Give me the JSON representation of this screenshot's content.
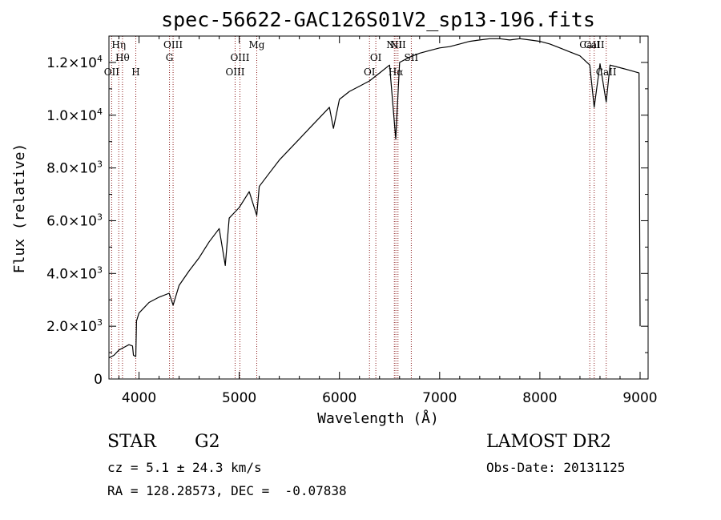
{
  "chart_data": {
    "type": "line",
    "title": "spec-56622-GAC126S01V2_sp13-196.fits",
    "xlabel": "Wavelength (Å)",
    "ylabel": "Flux (relative)",
    "xlim": [
      3700,
      9080
    ],
    "ylim": [
      0,
      13000
    ],
    "x_ticks": [
      4000,
      5000,
      6000,
      7000,
      8000,
      9000
    ],
    "y_ticks": [
      {
        "value": 0,
        "mant": "0",
        "exp": ""
      },
      {
        "value": 2000,
        "mant": "2.0×10",
        "exp": "3"
      },
      {
        "value": 4000,
        "mant": "4.0×10",
        "exp": "3"
      },
      {
        "value": 6000,
        "mant": "6.0×10",
        "exp": "3"
      },
      {
        "value": 8000,
        "mant": "8.0×10",
        "exp": "3"
      },
      {
        "value": 10000,
        "mant": "1.0×10",
        "exp": "4"
      },
      {
        "value": 12000,
        "mant": "1.2×10",
        "exp": "4"
      }
    ],
    "grid": false,
    "series": [
      {
        "line_color": "#000000",
        "x": [
          3700,
          3750,
          3800,
          3850,
          3900,
          3935,
          3945,
          3968,
          3975,
          4000,
          4100,
          4200,
          4300,
          4340,
          4400,
          4500,
          4600,
          4700,
          4800,
          4861,
          4900,
          5000,
          5100,
          5175,
          5200,
          5300,
          5400,
          5500,
          5600,
          5700,
          5800,
          5900,
          5940,
          6000,
          6100,
          6200,
          6300,
          6400,
          6500,
          6562,
          6600,
          6700,
          6800,
          6900,
          7000,
          7100,
          7200,
          7300,
          7400,
          7500,
          7600,
          7700,
          7800,
          7900,
          8000,
          8100,
          8200,
          8300,
          8400,
          8498,
          8542,
          8600,
          8662,
          8700,
          8800,
          8900,
          8990,
          9000
        ],
        "y": [
          800,
          900,
          1100,
          1200,
          1300,
          1250,
          900,
          850,
          2200,
          2500,
          2900,
          3100,
          3250,
          2800,
          3550,
          4100,
          4600,
          5200,
          5700,
          4300,
          6100,
          6500,
          7100,
          6200,
          7300,
          7800,
          8300,
          8700,
          9100,
          9500,
          9900,
          10300,
          9500,
          10600,
          10900,
          11100,
          11300,
          11600,
          11900,
          9100,
          12000,
          12200,
          12350,
          12450,
          12550,
          12600,
          12700,
          12800,
          12850,
          12900,
          12900,
          12850,
          12900,
          12850,
          12800,
          12700,
          12550,
          12400,
          12250,
          11900,
          10300,
          11950,
          10500,
          11900,
          11800,
          11700,
          11600,
          2000
        ]
      }
    ],
    "lines": [
      {
        "x": 3727,
        "label": "OII",
        "row": 4
      },
      {
        "x": 3798,
        "label": "Hη",
        "row": 0
      },
      {
        "x": 3835,
        "label": "Hθ",
        "row": 2
      },
      {
        "x": 3968,
        "label": "H",
        "row": 4
      },
      {
        "x": 4304,
        "label": "G",
        "row": 2
      },
      {
        "x": 4340,
        "label": "OIII",
        "row": 0
      },
      {
        "x": 4959,
        "label": "OIII",
        "row": 4
      },
      {
        "x": 5007,
        "label": "OIII",
        "row": 2
      },
      {
        "x": 5175,
        "label": "Mg",
        "row": 0
      },
      {
        "x": 6300,
        "label": "OI",
        "row": 4
      },
      {
        "x": 6363,
        "label": "OI",
        "row": 2
      },
      {
        "x": 6548,
        "label": "NII",
        "row": 0
      },
      {
        "x": 6563,
        "label": "Hα",
        "row": 4
      },
      {
        "x": 6584,
        "label": "NII",
        "row": 0
      },
      {
        "x": 6717,
        "label": "SII",
        "row": 2
      },
      {
        "x": 8498,
        "label": "CaII",
        "row": 0
      },
      {
        "x": 8542,
        "label": "CaII",
        "row": 0
      },
      {
        "x": 8662,
        "label": "CaII",
        "row": 4
      }
    ]
  },
  "info": {
    "class_label": "STAR",
    "subclass_label": "G2",
    "survey_label": "LAMOST DR2",
    "cz_text": "cz = 5.1 ± 24.3 km/s",
    "obs_date_text": "Obs-Date: 20131125",
    "coords_text": "RA = 128.28573, DEC =  -0.07838"
  }
}
